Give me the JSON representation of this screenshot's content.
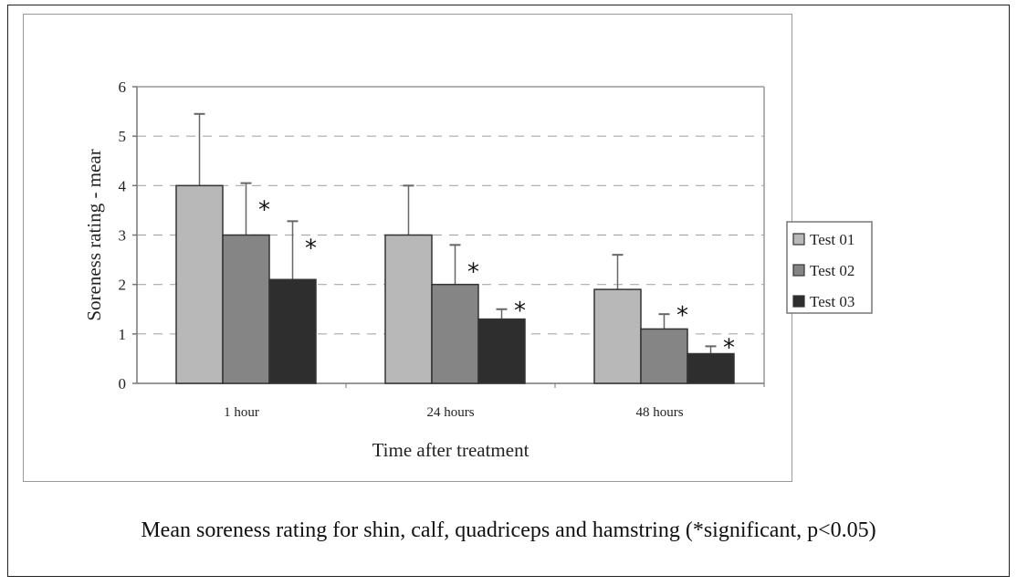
{
  "caption": "Mean soreness rating for shin, calf, quadriceps and hamstring (*significant, p<0.05)",
  "chart_data": {
    "type": "bar",
    "title": "",
    "xlabel": "Time after treatment",
    "ylabel": "Soreness rating - mear",
    "ylim": [
      0,
      6
    ],
    "yticks": [
      "0",
      "1",
      "2",
      "3",
      "4",
      "5",
      "6"
    ],
    "grid": "dashed horizontal",
    "legend_position": "right",
    "categories": [
      "1 hour",
      "24 hours",
      "48 hours"
    ],
    "series": [
      {
        "name": "Test 01",
        "color": "#b8b8b8",
        "values": [
          4.0,
          3.0,
          1.9
        ],
        "error_upper": [
          5.45,
          4.0,
          2.6
        ],
        "significant": [
          false,
          false,
          false
        ]
      },
      {
        "name": "Test 02",
        "color": "#858585",
        "values": [
          3.0,
          2.0,
          1.1
        ],
        "error_upper": [
          4.05,
          2.8,
          1.4
        ],
        "significant": [
          true,
          true,
          true
        ]
      },
      {
        "name": "Test 03",
        "color": "#2e2e2e",
        "values": [
          2.1,
          1.3,
          0.6
        ],
        "error_upper": [
          3.28,
          1.5,
          0.75
        ],
        "significant": [
          true,
          true,
          true
        ]
      }
    ],
    "significance_marker": "*"
  }
}
